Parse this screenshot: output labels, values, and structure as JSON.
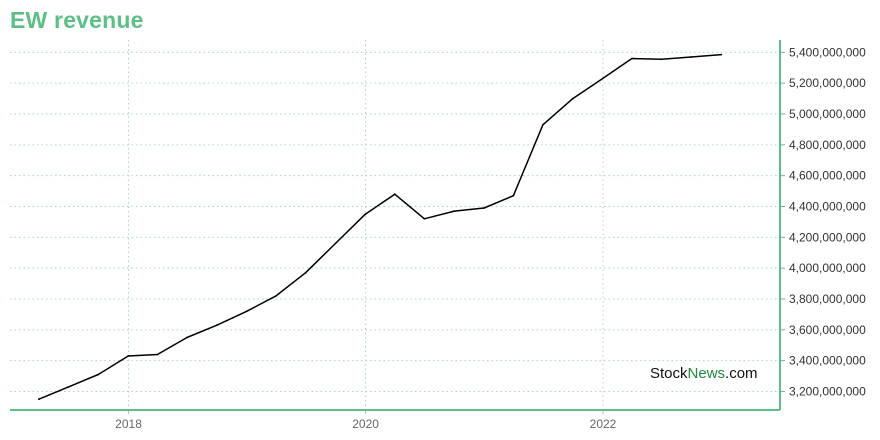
{
  "chart_data": {
    "type": "line",
    "title": "EW revenue",
    "xlabel": "",
    "ylabel": "",
    "ylim": [
      3080000000,
      5480000000
    ],
    "y_ticks": [
      3200000000,
      3400000000,
      3600000000,
      3800000000,
      4000000000,
      4200000000,
      4400000000,
      4600000000,
      4800000000,
      5000000000,
      5200000000,
      5400000000
    ],
    "y_tick_labels": [
      "3,200,000,000",
      "3,400,000,000",
      "3,600,000,000",
      "3,800,000,000",
      "4,000,000,000",
      "4,200,000,000",
      "4,400,000,000",
      "4,600,000,000",
      "4,800,000,000",
      "5,000,000,000",
      "5,200,000,000",
      "5,400,000,000"
    ],
    "x_ticks": [
      "2018-01-01",
      "2020-01-01",
      "2022-01-01"
    ],
    "x_tick_labels": [
      "2018",
      "2020",
      "2022"
    ],
    "xlim": [
      "2017-01-01",
      "2023-06-30"
    ],
    "grid": true,
    "y_axis_side": "right",
    "colors": {
      "line": "#000000",
      "title": "#5bbf86",
      "axis": "#5bbf86",
      "grid": "#9fd9c3"
    },
    "series": [
      {
        "points": [
          [
            "2017-03-31",
            3150000000
          ],
          [
            "2017-06-30",
            3230000000
          ],
          [
            "2017-09-30",
            3310000000
          ],
          [
            "2017-12-31",
            3430000000
          ],
          [
            "2018-03-31",
            3440000000
          ],
          [
            "2018-06-30",
            3550000000
          ],
          [
            "2018-09-30",
            3630000000
          ],
          [
            "2018-12-31",
            3720000000
          ],
          [
            "2019-03-31",
            3820000000
          ],
          [
            "2019-06-30",
            3970000000
          ],
          [
            "2019-09-30",
            4160000000
          ],
          [
            "2019-12-31",
            4350000000
          ],
          [
            "2020-03-31",
            4480000000
          ],
          [
            "2020-06-30",
            4320000000
          ],
          [
            "2020-09-30",
            4370000000
          ],
          [
            "2020-12-31",
            4390000000
          ],
          [
            "2021-03-31",
            4470000000
          ],
          [
            "2021-06-30",
            4930000000
          ],
          [
            "2021-09-30",
            5100000000
          ],
          [
            "2021-12-31",
            5230000000
          ],
          [
            "2022-03-31",
            5360000000
          ],
          [
            "2022-06-30",
            5355000000
          ],
          [
            "2022-09-30",
            5370000000
          ],
          [
            "2022-12-31",
            5385000000
          ]
        ]
      }
    ]
  },
  "watermark": {
    "part1": "Stock",
    "part2": "News",
    "part3": ".com"
  }
}
